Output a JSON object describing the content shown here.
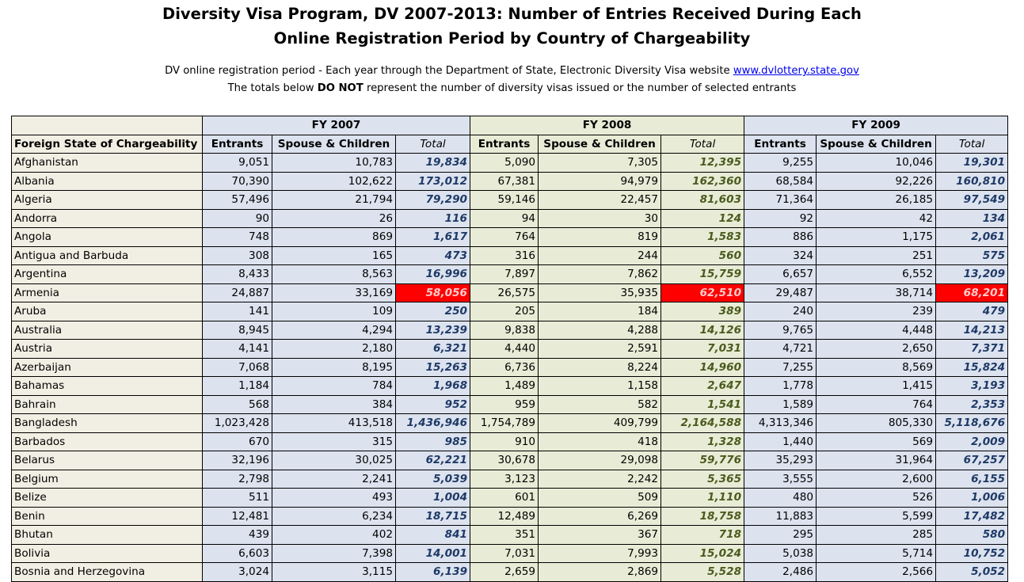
{
  "title": {
    "line1": "Diversity Visa Program, DV 2007-2013: Number of Entries Received During Each",
    "line2": "Online Registration Period by Country of Chargeability"
  },
  "subtitle": {
    "line1_prefix": "DV online registration period - Each year through the Department of State, Electronic Diversity Visa website ",
    "link": "www.dvlottery.state.gov",
    "line2_prefix": "The totals below ",
    "line2_bold": "DO NOT",
    "line2_suffix": " represent the number of diversity visas issued or the number of selected entrants"
  },
  "table": {
    "fy_headers": [
      "FY 2007",
      "FY 2008",
      "FY 2009"
    ],
    "name_header": "Foreign State of Chargeability",
    "col_headers": [
      "Entrants",
      "Spouse & Children",
      "Total"
    ],
    "highlight_color": "#ff0000",
    "rows": [
      {
        "name": "Afghanistan",
        "v": [
          "9,051",
          "10,783",
          "19,834",
          "5,090",
          "7,305",
          "12,395",
          "9,255",
          "10,046",
          "19,301"
        ]
      },
      {
        "name": "Albania",
        "v": [
          "70,390",
          "102,622",
          "173,012",
          "67,381",
          "94,979",
          "162,360",
          "68,584",
          "92,226",
          "160,810"
        ]
      },
      {
        "name": "Algeria",
        "v": [
          "57,496",
          "21,794",
          "79,290",
          "59,146",
          "22,457",
          "81,603",
          "71,364",
          "26,185",
          "97,549"
        ]
      },
      {
        "name": "Andorra",
        "v": [
          "90",
          "26",
          "116",
          "94",
          "30",
          "124",
          "92",
          "42",
          "134"
        ]
      },
      {
        "name": "Angola",
        "v": [
          "748",
          "869",
          "1,617",
          "764",
          "819",
          "1,583",
          "886",
          "1,175",
          "2,061"
        ]
      },
      {
        "name": "Antigua and Barbuda",
        "v": [
          "308",
          "165",
          "473",
          "316",
          "244",
          "560",
          "324",
          "251",
          "575"
        ]
      },
      {
        "name": "Argentina",
        "v": [
          "8,433",
          "8,563",
          "16,996",
          "7,897",
          "7,862",
          "15,759",
          "6,657",
          "6,552",
          "13,209"
        ]
      },
      {
        "name": "Armenia",
        "v": [
          "24,887",
          "33,169",
          "58,056",
          "26,575",
          "35,935",
          "62,510",
          "29,487",
          "38,714",
          "68,201"
        ],
        "highlight": true
      },
      {
        "name": "Aruba",
        "v": [
          "141",
          "109",
          "250",
          "205",
          "184",
          "389",
          "240",
          "239",
          "479"
        ]
      },
      {
        "name": "Australia",
        "v": [
          "8,945",
          "4,294",
          "13,239",
          "9,838",
          "4,288",
          "14,126",
          "9,765",
          "4,448",
          "14,213"
        ]
      },
      {
        "name": "Austria",
        "v": [
          "4,141",
          "2,180",
          "6,321",
          "4,440",
          "2,591",
          "7,031",
          "4,721",
          "2,650",
          "7,371"
        ]
      },
      {
        "name": "Azerbaijan",
        "v": [
          "7,068",
          "8,195",
          "15,263",
          "6,736",
          "8,224",
          "14,960",
          "7,255",
          "8,569",
          "15,824"
        ]
      },
      {
        "name": "Bahamas",
        "v": [
          "1,184",
          "784",
          "1,968",
          "1,489",
          "1,158",
          "2,647",
          "1,778",
          "1,415",
          "3,193"
        ]
      },
      {
        "name": "Bahrain",
        "v": [
          "568",
          "384",
          "952",
          "959",
          "582",
          "1,541",
          "1,589",
          "764",
          "2,353"
        ]
      },
      {
        "name": "Bangladesh",
        "v": [
          "1,023,428",
          "413,518",
          "1,436,946",
          "1,754,789",
          "409,799",
          "2,164,588",
          "4,313,346",
          "805,330",
          "5,118,676"
        ]
      },
      {
        "name": "Barbados",
        "v": [
          "670",
          "315",
          "985",
          "910",
          "418",
          "1,328",
          "1,440",
          "569",
          "2,009"
        ]
      },
      {
        "name": "Belarus",
        "v": [
          "32,196",
          "30,025",
          "62,221",
          "30,678",
          "29,098",
          "59,776",
          "35,293",
          "31,964",
          "67,257"
        ]
      },
      {
        "name": "Belgium",
        "v": [
          "2,798",
          "2,241",
          "5,039",
          "3,123",
          "2,242",
          "5,365",
          "3,555",
          "2,600",
          "6,155"
        ]
      },
      {
        "name": "Belize",
        "v": [
          "511",
          "493",
          "1,004",
          "601",
          "509",
          "1,110",
          "480",
          "526",
          "1,006"
        ]
      },
      {
        "name": "Benin",
        "v": [
          "12,481",
          "6,234",
          "18,715",
          "12,489",
          "6,269",
          "18,758",
          "11,883",
          "5,599",
          "17,482"
        ]
      },
      {
        "name": "Bhutan",
        "v": [
          "439",
          "402",
          "841",
          "351",
          "367",
          "718",
          "295",
          "285",
          "580"
        ]
      },
      {
        "name": "Bolivia",
        "v": [
          "6,603",
          "7,398",
          "14,001",
          "7,031",
          "7,993",
          "15,024",
          "5,038",
          "5,714",
          "10,752"
        ]
      },
      {
        "name": "Bosnia and Herzegovina",
        "v": [
          "3,024",
          "3,115",
          "6,139",
          "2,659",
          "2,869",
          "5,528",
          "2,486",
          "2,566",
          "5,052"
        ]
      }
    ]
  }
}
